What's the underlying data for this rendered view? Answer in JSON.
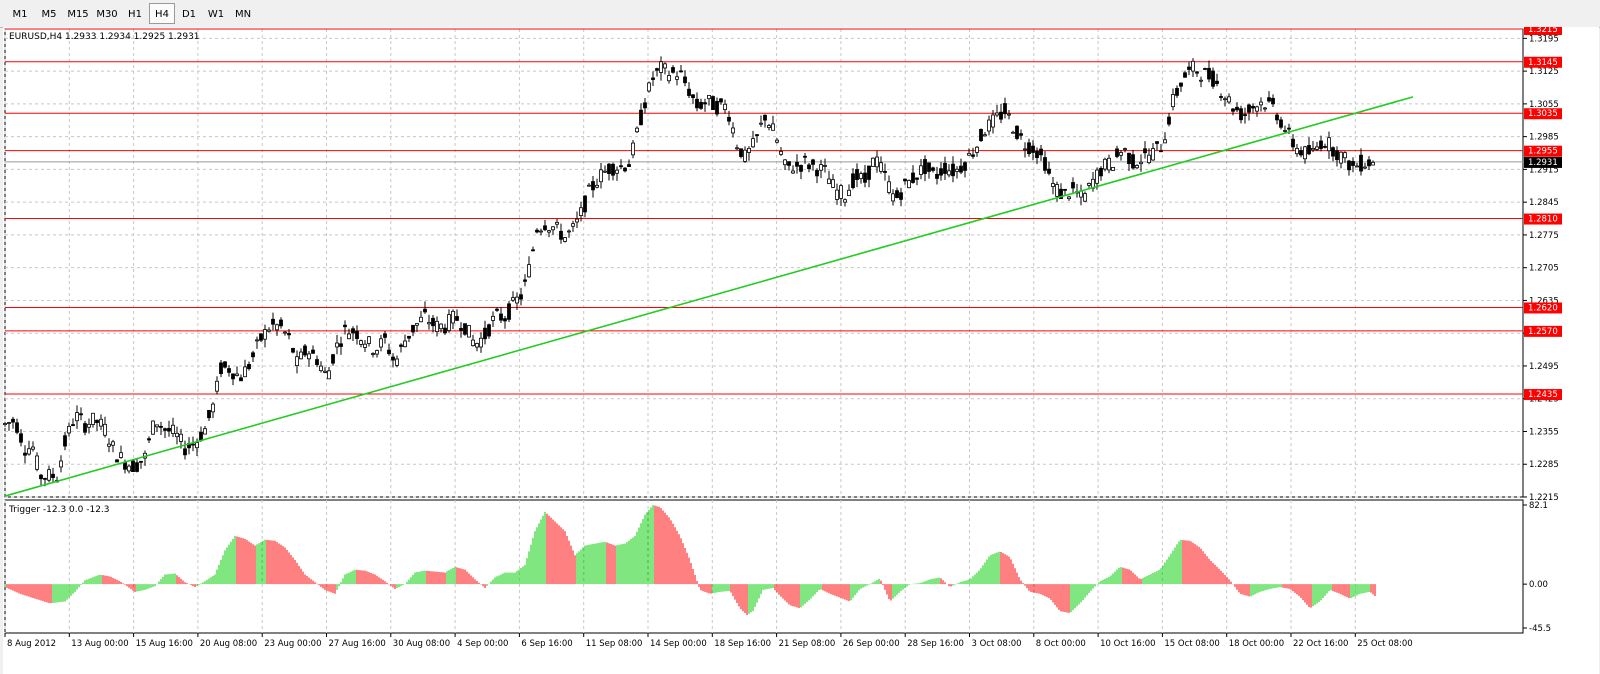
{
  "toolbar": {
    "timeframes": [
      {
        "label": "M1",
        "active": false
      },
      {
        "label": "M5",
        "active": false
      },
      {
        "label": "M15",
        "active": false
      },
      {
        "label": "M30",
        "active": false
      },
      {
        "label": "H1",
        "active": false
      },
      {
        "label": "H4",
        "active": true
      },
      {
        "label": "D1",
        "active": false
      },
      {
        "label": "W1",
        "active": false
      },
      {
        "label": "MN",
        "active": false
      }
    ]
  },
  "main_chart": {
    "title": "EURUSD,H4  1.2933 1.2934 1.2925 1.2931",
    "current_price": "1.2931"
  },
  "indicator": {
    "title": "Trigger -12.3 0.0 -12.3"
  },
  "colors": {
    "up_histogram": "#00cc00",
    "down_histogram": "#ff0000",
    "level_line": "#ff0000",
    "trendline": "#22cc22",
    "candle": "#000000",
    "grid": "#c8c8c8"
  },
  "chart_data": [
    {
      "type": "candlestick",
      "symbol": "EURUSD",
      "timeframe": "H4",
      "ohlc_last": {
        "open": 1.2933,
        "high": 1.2934,
        "low": 1.2925,
        "close": 1.2931
      },
      "ylim": [
        1.2215,
        1.3215
      ],
      "y_ticks": [
        "1.3195",
        "1.3125",
        "1.3055",
        "1.2985",
        "1.2915",
        "1.2845",
        "1.2775",
        "1.2705",
        "1.2635",
        "1.2565",
        "1.2495",
        "1.2425",
        "1.2355",
        "1.2285",
        "1.2215"
      ],
      "x_ticks": [
        "8 Aug 2012",
        "13 Aug 00:00",
        "15 Aug 16:00",
        "20 Aug 08:00",
        "23 Aug 00:00",
        "27 Aug 16:00",
        "30 Aug 08:00",
        "4 Sep 00:00",
        "6 Sep 16:00",
        "11 Sep 08:00",
        "14 Sep 00:00",
        "18 Sep 16:00",
        "21 Sep 08:00",
        "26 Sep 00:00",
        "28 Sep 16:00",
        "3 Oct 08:00",
        "8 Oct 00:00",
        "10 Oct 16:00",
        "15 Oct 08:00",
        "18 Oct 00:00",
        "22 Oct 16:00",
        "25 Oct 08:00"
      ],
      "price_path": [
        [
          0,
          1.237
        ],
        [
          10,
          1.238
        ],
        [
          20,
          1.232
        ],
        [
          28,
          1.232
        ],
        [
          35,
          1.226
        ],
        [
          45,
          1.226
        ],
        [
          52,
          1.226
        ],
        [
          60,
          1.233
        ],
        [
          70,
          1.239
        ],
        [
          80,
          1.237
        ],
        [
          90,
          1.238
        ],
        [
          100,
          1.236
        ],
        [
          110,
          1.231
        ],
        [
          120,
          1.229
        ],
        [
          130,
          1.228
        ],
        [
          140,
          1.23
        ],
        [
          150,
          1.238
        ],
        [
          160,
          1.236
        ],
        [
          170,
          1.235
        ],
        [
          180,
          1.232
        ],
        [
          190,
          1.233
        ],
        [
          200,
          1.236
        ],
        [
          210,
          1.242
        ],
        [
          215,
          1.249
        ],
        [
          225,
          1.249
        ],
        [
          235,
          1.247
        ],
        [
          245,
          1.25
        ],
        [
          255,
          1.255
        ],
        [
          265,
          1.258
        ],
        [
          275,
          1.258
        ],
        [
          285,
          1.255
        ],
        [
          292,
          1.25
        ],
        [
          302,
          1.253
        ],
        [
          312,
          1.251
        ],
        [
          322,
          1.247
        ],
        [
          330,
          1.253
        ],
        [
          340,
          1.257
        ],
        [
          350,
          1.257
        ],
        [
          360,
          1.255
        ],
        [
          370,
          1.253
        ],
        [
          380,
          1.255
        ],
        [
          390,
          1.25
        ],
        [
          400,
          1.255
        ],
        [
          410,
          1.258
        ],
        [
          420,
          1.26
        ],
        [
          430,
          1.258
        ],
        [
          440,
          1.258
        ],
        [
          450,
          1.26
        ],
        [
          460,
          1.258
        ],
        [
          470,
          1.254
        ],
        [
          480,
          1.256
        ],
        [
          490,
          1.26
        ],
        [
          500,
          1.26
        ],
        [
          510,
          1.263
        ],
        [
          518,
          1.265
        ],
        [
          525,
          1.271
        ],
        [
          532,
          1.279
        ],
        [
          540,
          1.28
        ],
        [
          550,
          1.279
        ],
        [
          560,
          1.277
        ],
        [
          570,
          1.279
        ],
        [
          578,
          1.283
        ],
        [
          585,
          1.287
        ],
        [
          595,
          1.29
        ],
        [
          605,
          1.292
        ],
        [
          615,
          1.292
        ],
        [
          625,
          1.293
        ],
        [
          632,
          1.299
        ],
        [
          640,
          1.306
        ],
        [
          648,
          1.311
        ],
        [
          656,
          1.313
        ],
        [
          665,
          1.312
        ],
        [
          675,
          1.312
        ],
        [
          685,
          1.308
        ],
        [
          692,
          1.305
        ],
        [
          702,
          1.306
        ],
        [
          712,
          1.305
        ],
        [
          722,
          1.305
        ],
        [
          732,
          1.297
        ],
        [
          740,
          1.294
        ],
        [
          750,
          1.297
        ],
        [
          760,
          1.303
        ],
        [
          770,
          1.299
        ],
        [
          780,
          1.292
        ],
        [
          790,
          1.292
        ],
        [
          800,
          1.293
        ],
        [
          810,
          1.292
        ],
        [
          820,
          1.291
        ],
        [
          830,
          1.287
        ],
        [
          840,
          1.286
        ],
        [
          850,
          1.29
        ],
        [
          860,
          1.289
        ],
        [
          870,
          1.294
        ],
        [
          880,
          1.29
        ],
        [
          890,
          1.285
        ],
        [
          900,
          1.288
        ],
        [
          910,
          1.29
        ],
        [
          920,
          1.292
        ],
        [
          930,
          1.29
        ],
        [
          940,
          1.292
        ],
        [
          950,
          1.291
        ],
        [
          960,
          1.293
        ],
        [
          970,
          1.296
        ],
        [
          980,
          1.3
        ],
        [
          990,
          1.302
        ],
        [
          1000,
          1.304
        ],
        [
          1010,
          1.3
        ],
        [
          1020,
          1.297
        ],
        [
          1030,
          1.296
        ],
        [
          1040,
          1.293
        ],
        [
          1048,
          1.288
        ],
        [
          1058,
          1.286
        ],
        [
          1068,
          1.287
        ],
        [
          1078,
          1.285
        ],
        [
          1088,
          1.289
        ],
        [
          1098,
          1.292
        ],
        [
          1108,
          1.293
        ],
        [
          1118,
          1.296
        ],
        [
          1128,
          1.293
        ],
        [
          1138,
          1.294
        ],
        [
          1148,
          1.295
        ],
        [
          1158,
          1.297
        ],
        [
          1168,
          1.306
        ],
        [
          1178,
          1.311
        ],
        [
          1188,
          1.313
        ],
        [
          1198,
          1.312
        ],
        [
          1208,
          1.311
        ],
        [
          1218,
          1.308
        ],
        [
          1228,
          1.305
        ],
        [
          1238,
          1.303
        ],
        [
          1248,
          1.305
        ],
        [
          1258,
          1.306
        ],
        [
          1268,
          1.305
        ],
        [
          1278,
          1.301
        ],
        [
          1288,
          1.297
        ],
        [
          1298,
          1.295
        ],
        [
          1308,
          1.295
        ],
        [
          1318,
          1.298
        ],
        [
          1328,
          1.296
        ],
        [
          1338,
          1.294
        ],
        [
          1348,
          1.292
        ],
        [
          1358,
          1.293
        ],
        [
          1368,
          1.2931
        ]
      ],
      "support_resistance_levels": [
        1.3215,
        1.3145,
        1.3035,
        1.2955,
        1.281,
        1.262,
        1.257,
        1.2435
      ],
      "trendline": {
        "from": {
          "x": 0,
          "y": 1.2217
        },
        "to": {
          "x": 1408,
          "y": 1.307
        }
      }
    },
    {
      "type": "histogram",
      "name": "Trigger",
      "ylim": [
        -45.5,
        82.1
      ],
      "y_ticks": [
        "82.1",
        "0.00",
        "-45.5"
      ],
      "current": -12.3,
      "envelope": [
        [
          0,
          -3
        ],
        [
          15,
          -10
        ],
        [
          30,
          -15
        ],
        [
          45,
          -20
        ],
        [
          60,
          -18
        ],
        [
          70,
          -8
        ],
        [
          80,
          4
        ],
        [
          95,
          10
        ],
        [
          105,
          8
        ],
        [
          115,
          3
        ],
        [
          130,
          -8
        ],
        [
          140,
          -6
        ],
        [
          150,
          -2
        ],
        [
          160,
          10
        ],
        [
          170,
          11
        ],
        [
          180,
          2
        ],
        [
          190,
          -3
        ],
        [
          200,
          3
        ],
        [
          210,
          10
        ],
        [
          220,
          35
        ],
        [
          230,
          50
        ],
        [
          240,
          47
        ],
        [
          250,
          40
        ],
        [
          260,
          46
        ],
        [
          270,
          45
        ],
        [
          280,
          38
        ],
        [
          290,
          25
        ],
        [
          300,
          10
        ],
        [
          310,
          2
        ],
        [
          320,
          -6
        ],
        [
          330,
          -10
        ],
        [
          340,
          10
        ],
        [
          350,
          15
        ],
        [
          360,
          14
        ],
        [
          370,
          10
        ],
        [
          380,
          3
        ],
        [
          390,
          -5
        ],
        [
          400,
          0
        ],
        [
          410,
          12
        ],
        [
          420,
          14
        ],
        [
          430,
          13
        ],
        [
          440,
          12
        ],
        [
          450,
          18
        ],
        [
          460,
          15
        ],
        [
          470,
          5
        ],
        [
          480,
          -4
        ],
        [
          490,
          7
        ],
        [
          500,
          12
        ],
        [
          510,
          12
        ],
        [
          520,
          20
        ],
        [
          530,
          55
        ],
        [
          540,
          75
        ],
        [
          550,
          65
        ],
        [
          560,
          55
        ],
        [
          570,
          30
        ],
        [
          580,
          40
        ],
        [
          590,
          42
        ],
        [
          600,
          44
        ],
        [
          610,
          40
        ],
        [
          620,
          42
        ],
        [
          630,
          50
        ],
        [
          640,
          72
        ],
        [
          648,
          82
        ],
        [
          655,
          80
        ],
        [
          665,
          68
        ],
        [
          675,
          50
        ],
        [
          685,
          25
        ],
        [
          695,
          -6
        ],
        [
          705,
          -10
        ],
        [
          715,
          -8
        ],
        [
          725,
          -7
        ],
        [
          735,
          -25
        ],
        [
          742,
          -32
        ],
        [
          748,
          -28
        ],
        [
          758,
          -6
        ],
        [
          768,
          -4
        ],
        [
          775,
          -12
        ],
        [
          785,
          -22
        ],
        [
          795,
          -25
        ],
        [
          805,
          -16
        ],
        [
          815,
          -5
        ],
        [
          825,
          -10
        ],
        [
          835,
          -14
        ],
        [
          845,
          -18
        ],
        [
          855,
          -5
        ],
        [
          865,
          0
        ],
        [
          875,
          6
        ],
        [
          885,
          -18
        ],
        [
          895,
          -8
        ],
        [
          905,
          0
        ],
        [
          915,
          1
        ],
        [
          925,
          5
        ],
        [
          935,
          7
        ],
        [
          945,
          -3
        ],
        [
          955,
          2
        ],
        [
          965,
          5
        ],
        [
          975,
          15
        ],
        [
          985,
          30
        ],
        [
          995,
          34
        ],
        [
          1005,
          28
        ],
        [
          1015,
          5
        ],
        [
          1025,
          -8
        ],
        [
          1035,
          -10
        ],
        [
          1045,
          -15
        ],
        [
          1055,
          -28
        ],
        [
          1065,
          -30
        ],
        [
          1075,
          -20
        ],
        [
          1085,
          -8
        ],
        [
          1095,
          3
        ],
        [
          1105,
          8
        ],
        [
          1115,
          18
        ],
        [
          1125,
          15
        ],
        [
          1135,
          5
        ],
        [
          1145,
          10
        ],
        [
          1155,
          15
        ],
        [
          1165,
          30
        ],
        [
          1175,
          46
        ],
        [
          1185,
          45
        ],
        [
          1195,
          38
        ],
        [
          1205,
          25
        ],
        [
          1215,
          15
        ],
        [
          1225,
          4
        ],
        [
          1235,
          -10
        ],
        [
          1245,
          -13
        ],
        [
          1255,
          -8
        ],
        [
          1265,
          -5
        ],
        [
          1275,
          -3
        ],
        [
          1285,
          -5
        ],
        [
          1295,
          -13
        ],
        [
          1305,
          -25
        ],
        [
          1315,
          -18
        ],
        [
          1325,
          -6
        ],
        [
          1335,
          -10
        ],
        [
          1345,
          -15
        ],
        [
          1355,
          -10
        ],
        [
          1365,
          -8
        ],
        [
          1370,
          -12.3
        ]
      ]
    }
  ]
}
